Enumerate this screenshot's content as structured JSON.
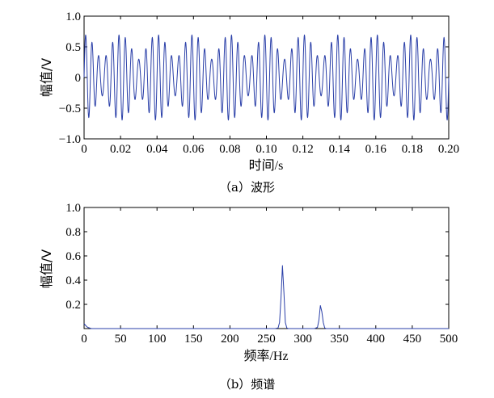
{
  "chart_data": [
    {
      "id": "a",
      "type": "line",
      "caption": "（a）波形",
      "xlabel": "时间/s",
      "ylabel": "幅值/V",
      "xlim": [
        0,
        0.2
      ],
      "ylim": [
        -1.0,
        1.0
      ],
      "xticks": [
        0,
        0.02,
        0.04,
        0.06,
        0.08,
        0.1,
        0.12,
        0.14,
        0.16,
        0.18,
        0.2
      ],
      "xtick_labels": [
        "0",
        "0.02",
        "0.04",
        "0.06",
        "0.08",
        "0.10",
        "0.12",
        "0.14",
        "0.16",
        "0.18",
        "0.20"
      ],
      "yticks": [
        -1.0,
        -0.5,
        0,
        0.5,
        1.0
      ],
      "ytick_labels": [
        "−1.0",
        "−0.5",
        "0",
        "0.5",
        "1.0"
      ],
      "grid": false,
      "line_color": "#2a3fa8",
      "series": [
        {
          "components": [
            {
              "frequency_hz": 275,
              "amplitude": 0.5
            },
            {
              "frequency_hz": 325,
              "amplitude": 0.2
            }
          ],
          "x_start": 0,
          "x_end": 0.2
        }
      ]
    },
    {
      "id": "b",
      "type": "line",
      "caption": "（b）频谱",
      "xlabel": "频率/Hz",
      "ylabel": "幅值/V",
      "xlim": [
        0,
        500
      ],
      "ylim": [
        0,
        1.0
      ],
      "xticks": [
        0,
        50,
        100,
        150,
        200,
        250,
        300,
        350,
        400,
        450,
        500
      ],
      "xtick_labels": [
        "0",
        "50",
        "100",
        "150",
        "200",
        "250",
        "300",
        "350",
        "400",
        "450",
        "500"
      ],
      "yticks": [
        0.2,
        0.4,
        0.6,
        0.8,
        1.0
      ],
      "ytick_labels": [
        "0.2",
        "0.4",
        "0.6",
        "0.8",
        "1.0"
      ],
      "grid": false,
      "line_color": "#2a3fa8",
      "series": [
        {
          "x": [
            0,
            3,
            5,
            10,
            100,
            250,
            262,
            266,
            268,
            270,
            272,
            274,
            276,
            278,
            280,
            284,
            300,
            316,
            320,
            322,
            324,
            326,
            328,
            330,
            332,
            340,
            400,
            500
          ],
          "y": [
            0.04,
            0.02,
            0.01,
            0.0,
            0.0,
            0.0,
            0.0,
            0.005,
            0.05,
            0.25,
            0.52,
            0.3,
            0.05,
            0.005,
            0.0,
            0.0,
            0.0,
            0.0,
            0.01,
            0.07,
            0.19,
            0.14,
            0.05,
            0.005,
            0.0,
            0.0,
            0.0,
            0.0
          ]
        }
      ]
    }
  ]
}
